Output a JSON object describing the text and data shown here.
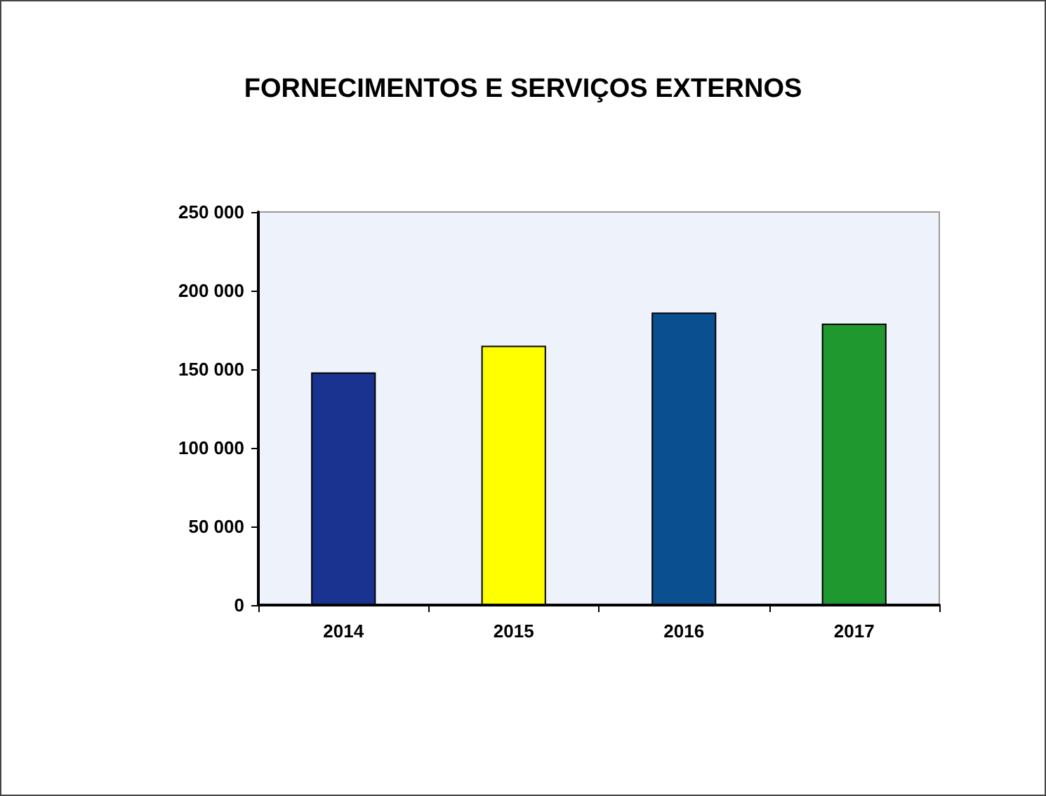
{
  "chart_data": {
    "type": "bar",
    "title": "FORNECIMENTOS E SERVIÇOS EXTERNOS",
    "categories": [
      "2014",
      "2015",
      "2016",
      "2017"
    ],
    "values": [
      148000,
      165000,
      186000,
      179000
    ],
    "colors": [
      "#1a3390",
      "#ffff00",
      "#0a5090",
      "#209830"
    ],
    "ylim": [
      0,
      250000
    ],
    "yticks": [
      {
        "value": 0,
        "label": "0"
      },
      {
        "value": 50000,
        "label": "50 000"
      },
      {
        "value": 100000,
        "label": "100 000"
      },
      {
        "value": 150000,
        "label": "150 000"
      },
      {
        "value": 200000,
        "label": "200 000"
      },
      {
        "value": 250000,
        "label": "250 000"
      }
    ],
    "grid": false
  }
}
